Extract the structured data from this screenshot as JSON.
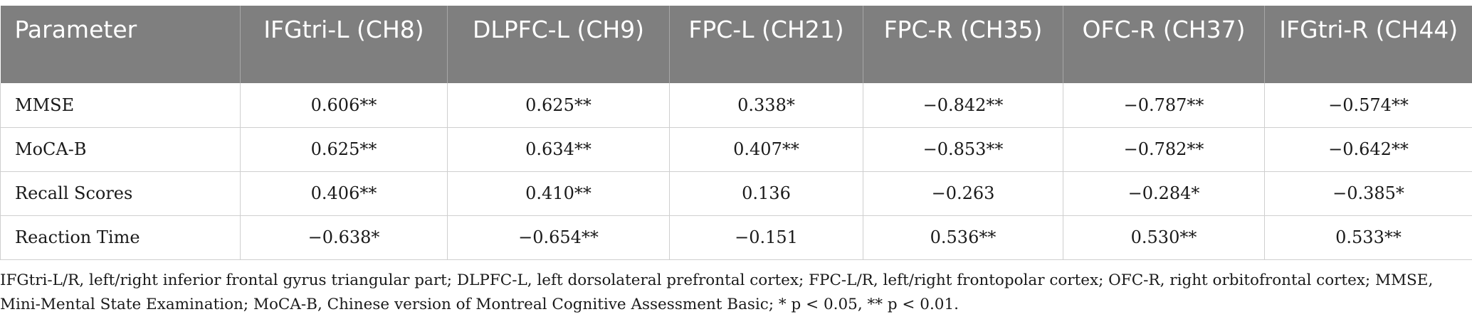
{
  "table": {
    "headers": [
      "Parameter",
      "IFGtri-L (CH8)",
      "DLPFC-L (CH9)",
      "FPC-L (CH21)",
      "FPC-R (CH35)",
      "OFC-R (CH37)",
      "IFGtri-R (CH44)"
    ],
    "rows": [
      [
        "MMSE",
        "0.606**",
        "0.625**",
        "0.338*",
        "−0.842**",
        "−0.787**",
        "−0.574**"
      ],
      [
        "MoCA-B",
        "0.625**",
        "0.634**",
        "0.407**",
        "−0.853**",
        "−0.782**",
        "−0.642**"
      ],
      [
        "Recall Scores",
        "0.406**",
        "0.410**",
        "0.136",
        "−0.263",
        "−0.284*",
        "−0.385*"
      ],
      [
        "Reaction Time",
        "−0.638*",
        "−0.654**",
        "−0.151",
        "0.536**",
        "0.530**",
        "0.533**"
      ]
    ]
  },
  "footnote": {
    "line1": "IFGtri-L/R, left/right inferior frontal gyrus triangular part; DLPFC-L, left dorsolateral prefrontal cortex; FPC-L/R, left/right frontopolar cortex; OFC-R, right orbitofrontal cortex; MMSE,",
    "line2": "Mini-Mental State Examination; MoCA-B, Chinese version of Montreal Cognitive Assessment Basic; * p < 0.05, ** p < 0.01."
  },
  "colors": {
    "header_background": "#7f7f7f",
    "header_text": "#ffffff",
    "grid_line": "#cfcfcf"
  }
}
